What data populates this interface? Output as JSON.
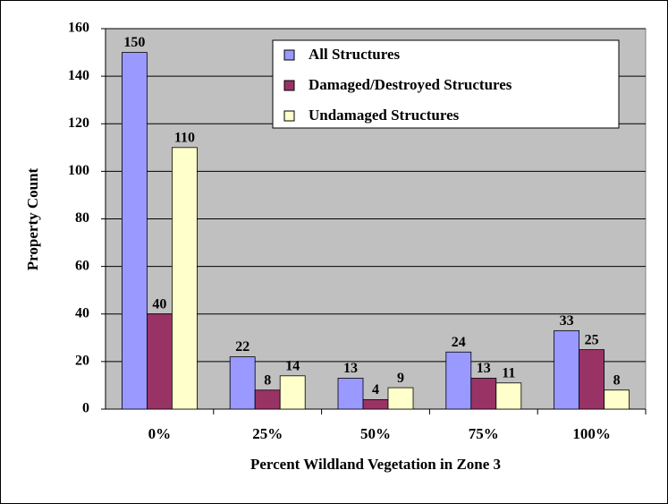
{
  "chart_data": {
    "type": "bar",
    "xlabel": "Percent Wildland Vegetation in Zone 3",
    "ylabel": "Property Count",
    "categories": [
      "0%",
      "25%",
      "50%",
      "75%",
      "100%"
    ],
    "series": [
      {
        "name": "All Structures",
        "color": "#9999ff",
        "values": [
          150,
          22,
          13,
          24,
          33
        ]
      },
      {
        "name": "Damaged/Destroyed Structures",
        "color": "#993366",
        "values": [
          40,
          8,
          4,
          13,
          25
        ]
      },
      {
        "name": "Undamaged Structures",
        "color": "#ffffcc",
        "values": [
          110,
          14,
          9,
          11,
          8
        ]
      }
    ],
    "ylim": [
      0,
      160
    ],
    "yticks": [
      0,
      20,
      40,
      60,
      80,
      100,
      120,
      140,
      160
    ],
    "grid": true,
    "legend": "upper right"
  }
}
